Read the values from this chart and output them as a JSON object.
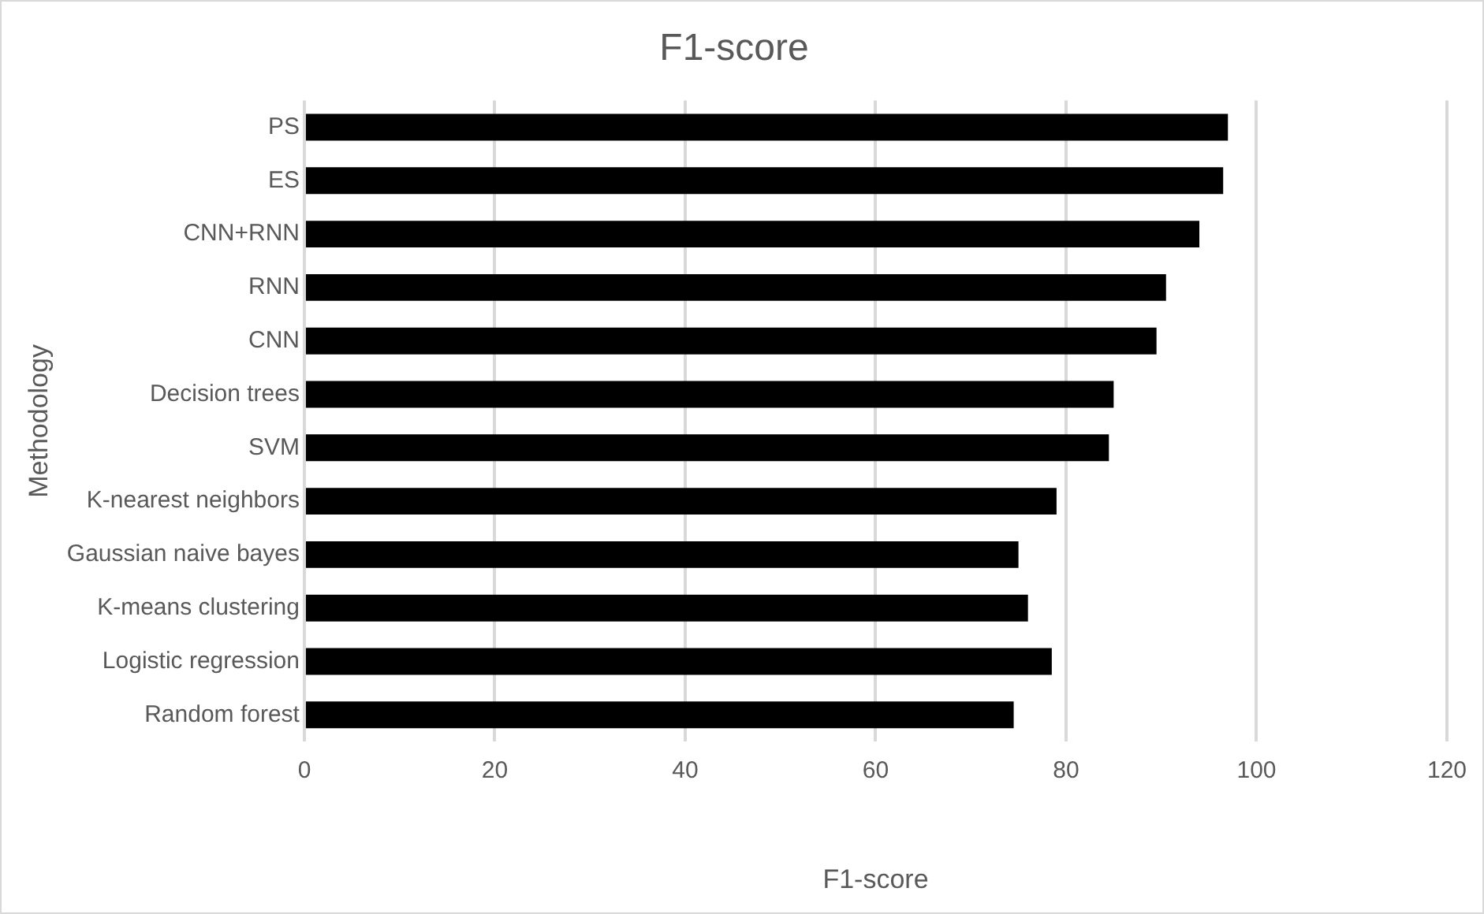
{
  "chart_data": {
    "type": "bar",
    "orientation": "horizontal",
    "title": "F1-score",
    "xlabel": "F1-score",
    "ylabel": "Methodology",
    "categories": [
      "PS",
      "ES",
      "CNN+RNN",
      "RNN",
      "CNN",
      "Decision trees",
      "SVM",
      "K-nearest neighbors",
      "Gaussian naive bayes",
      "K-means clustering",
      "Logistic regression",
      "Random forest"
    ],
    "values": [
      97,
      96.5,
      94,
      90.5,
      89.5,
      85,
      84.5,
      79,
      75,
      76,
      78.5,
      74.5
    ],
    "color": "#000000",
    "xlim": [
      0,
      120
    ],
    "xticks": [
      0,
      20,
      40,
      60,
      80,
      100,
      120
    ],
    "grid": "x",
    "legend": false
  }
}
